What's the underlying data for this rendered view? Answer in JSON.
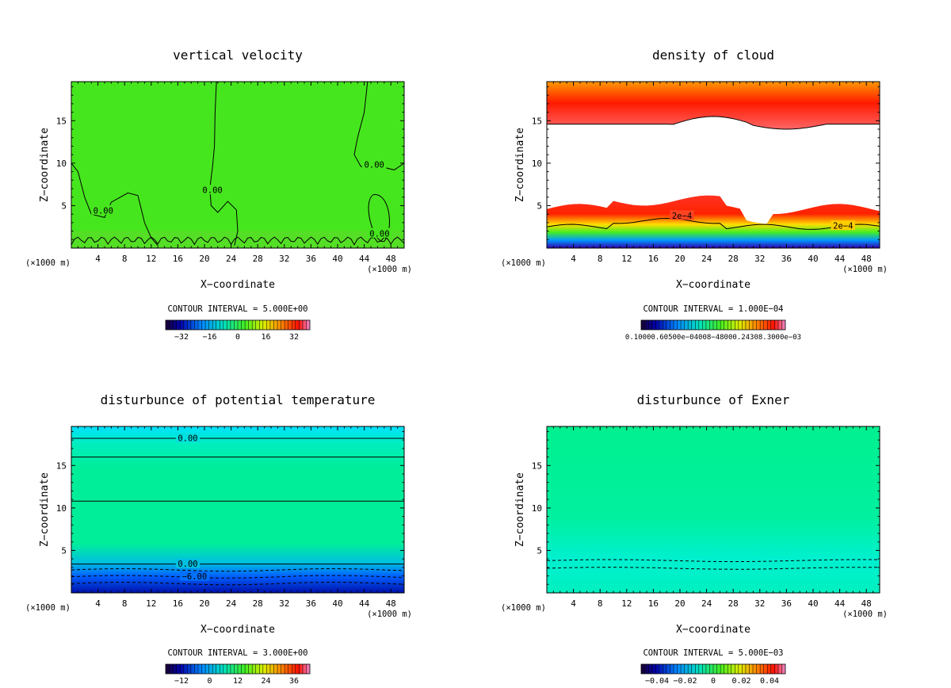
{
  "chart_data": [
    {
      "type": "contour",
      "title": "vertical velocity",
      "xlabel": "X−coordinate",
      "ylabel": "Z−coordinate",
      "x_unit_left": "(×1000 m)",
      "x_unit_right": "(×1000 m)",
      "xlim": [
        0,
        50
      ],
      "ylim": [
        0,
        19.6
      ],
      "x_ticks": [
        4,
        8,
        12,
        16,
        20,
        24,
        28,
        32,
        36,
        40,
        44,
        48
      ],
      "y_ticks": [
        5,
        10,
        15
      ],
      "contour_labels": [
        "0.00",
        "0.00",
        "0.00",
        "0.00"
      ],
      "contour_interval": "CONTOUR INTERVAL = 5.000E+00",
      "colorbar_ticks": [
        "−32",
        "−16",
        "0",
        "16",
        "32"
      ],
      "colormap": "rainbow"
    },
    {
      "type": "contour",
      "title": "density of cloud",
      "xlabel": "X−coordinate",
      "ylabel": "Z−coordinate",
      "x_unit_left": "(×1000 m)",
      "x_unit_right": "(×1000 m)",
      "xlim": [
        0,
        50
      ],
      "ylim": [
        0,
        19.6
      ],
      "x_ticks": [
        4,
        8,
        12,
        16,
        20,
        24,
        28,
        32,
        36,
        40,
        44,
        48
      ],
      "y_ticks": [
        5,
        10,
        15
      ],
      "contour_labels": [
        "2e−4",
        "2e−4"
      ],
      "contour_interval": "CONTOUR INTERVAL = 1.000E−04",
      "colorbar_ticks": [
        "0.10000.60500e−04008−48000.24308.3000e−03"
      ],
      "colormap": "rainbow"
    },
    {
      "type": "contour",
      "title": "disturbunce of potential temperature",
      "xlabel": "X−coordinate",
      "ylabel": "Z−coordinate",
      "x_unit_left": "(×1000 m)",
      "x_unit_right": "(×1000 m)",
      "xlim": [
        0,
        50
      ],
      "ylim": [
        0,
        19.6
      ],
      "x_ticks": [
        4,
        8,
        12,
        16,
        20,
        24,
        28,
        32,
        36,
        40,
        44,
        48
      ],
      "y_ticks": [
        5,
        10,
        15
      ],
      "contour_labels": [
        "0.00",
        "0.00",
        "−6.00"
      ],
      "contour_interval": "CONTOUR INTERVAL = 3.000E+00",
      "colorbar_ticks": [
        "−12",
        "0",
        "12",
        "24",
        "36"
      ],
      "colormap": "rainbow"
    },
    {
      "type": "contour",
      "title": "disturbunce of Exner",
      "xlabel": "X−coordinate",
      "ylabel": "Z−coordinate",
      "x_unit_left": "(×1000 m)",
      "x_unit_right": "(×1000 m)",
      "xlim": [
        0,
        50
      ],
      "ylim": [
        0,
        19.6
      ],
      "x_ticks": [
        4,
        8,
        12,
        16,
        20,
        24,
        28,
        32,
        36,
        40,
        44,
        48
      ],
      "y_ticks": [
        5,
        10,
        15
      ],
      "contour_labels": [],
      "contour_interval": "CONTOUR INTERVAL = 5.000E−03",
      "colorbar_ticks": [
        "−0.04",
        "−0.02",
        "0",
        "0.02",
        "0.04"
      ],
      "colormap": "rainbow"
    }
  ]
}
